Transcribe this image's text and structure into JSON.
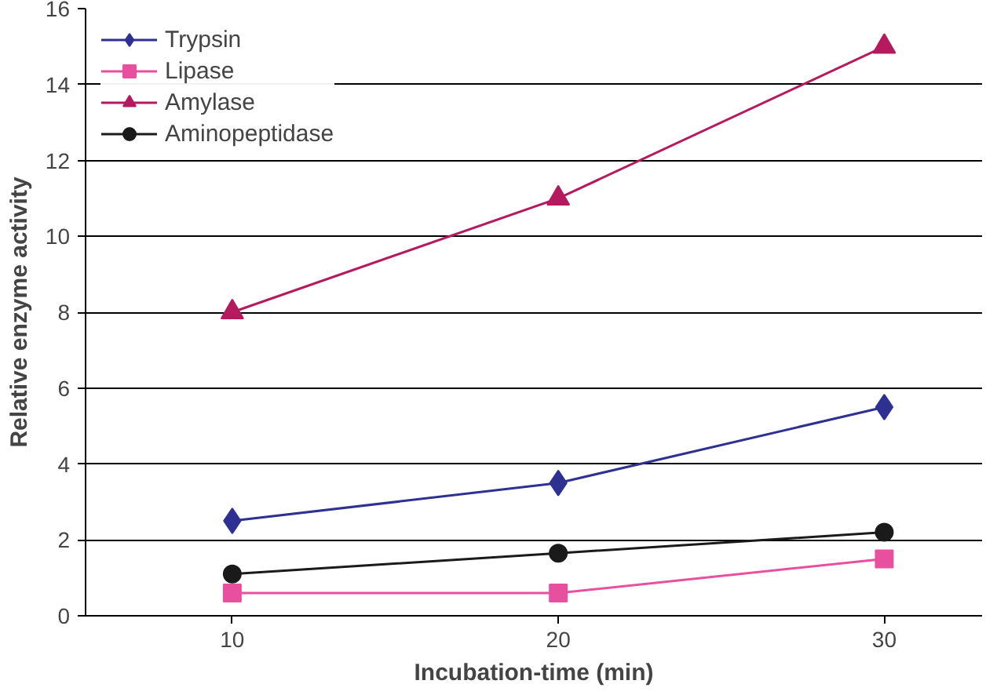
{
  "chart_data": {
    "type": "line",
    "xlabel": "Incubation-time (min)",
    "ylabel": "Relative enzyme activity",
    "categories": [
      "10",
      "20",
      "30"
    ],
    "series": [
      {
        "name": "Trypsin",
        "color": "#2e3192",
        "marker": "diamond",
        "values": [
          2.5,
          3.5,
          5.5
        ]
      },
      {
        "name": "Lipase",
        "color": "#e8509f",
        "marker": "square",
        "values": [
          0.6,
          0.6,
          1.5
        ]
      },
      {
        "name": "Amylase",
        "color": "#b5195e",
        "marker": "triangle",
        "values": [
          8,
          11,
          15
        ]
      },
      {
        "name": "Aminopeptidase",
        "color": "#1a1a1a",
        "marker": "circle",
        "values": [
          1.1,
          1.65,
          2.2
        ]
      }
    ],
    "ylim": [
      0,
      16
    ],
    "yticks": [
      0,
      2,
      4,
      6,
      8,
      10,
      12,
      14,
      16
    ],
    "grid": "y",
    "legend": "top left",
    "line_style": "solid"
  }
}
